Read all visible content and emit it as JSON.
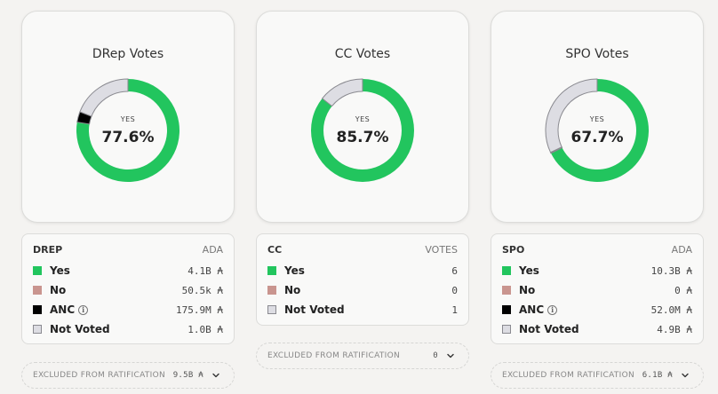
{
  "colors": {
    "yes": "#22c55e",
    "no": "#c9958f",
    "anc": "#000000",
    "not_voted": "#dddde3",
    "ring_border": "#8a8a90"
  },
  "panels": [
    {
      "title": "DRep Votes",
      "yes_label": "YES",
      "yes_pct_text": "77.6%",
      "legend_title": "DREP",
      "legend_unit": "ADA",
      "rows": [
        {
          "key": "yes",
          "label": "Yes",
          "value": "4.1B ₳"
        },
        {
          "key": "no",
          "label": "No",
          "value": "50.5k ₳"
        },
        {
          "key": "anc",
          "label": "ANC",
          "info": true,
          "value": "175.9M ₳"
        },
        {
          "key": "not_voted",
          "label": "Not Voted",
          "value": "1.0B ₳"
        }
      ],
      "excluded_label": "EXCLUDED FROM RATIFICATION",
      "excluded_value": "9.5B ₳",
      "ring": {
        "yes": 77.6,
        "anc": 3.3,
        "not_voted": 19.1
      }
    },
    {
      "title": "CC Votes",
      "yes_label": "YES",
      "yes_pct_text": "85.7%",
      "legend_title": "CC",
      "legend_unit": "VOTES",
      "rows": [
        {
          "key": "yes",
          "label": "Yes",
          "value": "6"
        },
        {
          "key": "no",
          "label": "No",
          "value": "0"
        },
        {
          "key": "not_voted",
          "label": "Not Voted",
          "value": "1"
        }
      ],
      "excluded_label": "EXCLUDED FROM RATIFICATION",
      "excluded_value": "0",
      "ring": {
        "yes": 85.7,
        "anc": 0,
        "not_voted": 14.3
      }
    },
    {
      "title": "SPO Votes",
      "yes_label": "YES",
      "yes_pct_text": "67.7%",
      "legend_title": "SPO",
      "legend_unit": "ADA",
      "rows": [
        {
          "key": "yes",
          "label": "Yes",
          "value": "10.3B ₳"
        },
        {
          "key": "no",
          "label": "No",
          "value": "0 ₳"
        },
        {
          "key": "anc",
          "label": "ANC",
          "info": true,
          "value": "52.0M ₳"
        },
        {
          "key": "not_voted",
          "label": "Not Voted",
          "value": "4.9B ₳"
        }
      ],
      "excluded_label": "EXCLUDED FROM RATIFICATION",
      "excluded_value": "6.1B ₳",
      "ring": {
        "yes": 67.7,
        "anc": 0.3,
        "not_voted": 32.0
      }
    }
  ]
}
